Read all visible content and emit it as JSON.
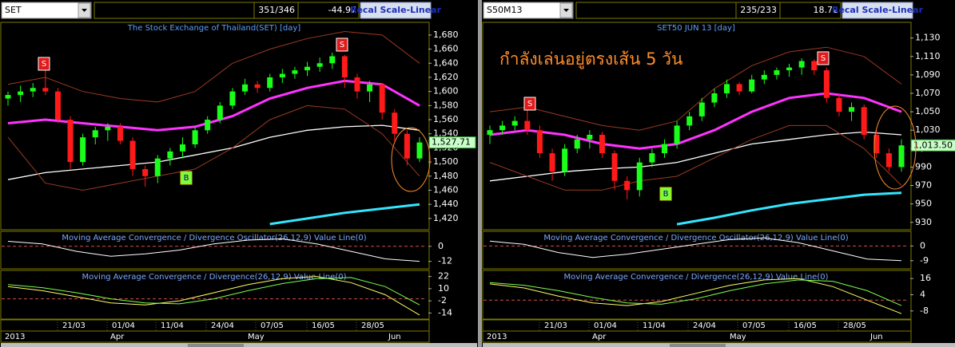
{
  "panels": [
    {
      "symbol": "SET",
      "counts": "351/346",
      "change": "-44.97",
      "button": "Recal Scale-Linear",
      "title": "The Stock Exchange of Thailand(SET) [day]",
      "price": {
        "ylim": [
          1404,
          1698
        ],
        "yticks": [
          {
            "value": 1420,
            "label": "1,420"
          },
          {
            "value": 1440,
            "label": "1,440"
          },
          {
            "value": 1460,
            "label": "1,460"
          },
          {
            "value": 1480,
            "label": "1,480"
          },
          {
            "value": 1500,
            "label": "1,500"
          },
          {
            "value": 1520,
            "label": "1,520"
          },
          {
            "value": 1540,
            "label": "1,540"
          },
          {
            "value": 1560,
            "label": "1,560"
          },
          {
            "value": 1580,
            "label": "1,580"
          },
          {
            "value": 1600,
            "label": "1,600"
          },
          {
            "value": 1620,
            "label": "1,620"
          },
          {
            "value": 1640,
            "label": "1,640"
          },
          {
            "value": 1660,
            "label": "1,660"
          },
          {
            "value": 1680,
            "label": "1,680"
          }
        ],
        "candles": [
          [
            1590,
            1600,
            1580,
            1595
          ],
          [
            1595,
            1608,
            1585,
            1600
          ],
          [
            1600,
            1612,
            1592,
            1605
          ],
          [
            1605,
            1640,
            1595,
            1600
          ],
          [
            1600,
            1605,
            1555,
            1560
          ],
          [
            1560,
            1565,
            1490,
            1500
          ],
          [
            1500,
            1540,
            1495,
            1535
          ],
          [
            1535,
            1550,
            1525,
            1545
          ],
          [
            1545,
            1555,
            1530,
            1550
          ],
          [
            1550,
            1555,
            1525,
            1530
          ],
          [
            1530,
            1535,
            1480,
            1490
          ],
          [
            1490,
            1495,
            1465,
            1480
          ],
          [
            1480,
            1510,
            1470,
            1505
          ],
          [
            1505,
            1520,
            1495,
            1515
          ],
          [
            1515,
            1535,
            1505,
            1525
          ],
          [
            1525,
            1550,
            1520,
            1545
          ],
          [
            1545,
            1565,
            1540,
            1560
          ],
          [
            1560,
            1585,
            1555,
            1580
          ],
          [
            1580,
            1605,
            1575,
            1600
          ],
          [
            1600,
            1618,
            1595,
            1610
          ],
          [
            1610,
            1615,
            1598,
            1605
          ],
          [
            1605,
            1625,
            1600,
            1620
          ],
          [
            1620,
            1632,
            1612,
            1625
          ],
          [
            1625,
            1635,
            1618,
            1630
          ],
          [
            1630,
            1642,
            1622,
            1635
          ],
          [
            1635,
            1648,
            1628,
            1640
          ],
          [
            1640,
            1655,
            1632,
            1650
          ],
          [
            1650,
            1652,
            1605,
            1620
          ],
          [
            1620,
            1625,
            1590,
            1600
          ],
          [
            1600,
            1615,
            1585,
            1610
          ],
          [
            1610,
            1612,
            1560,
            1570
          ],
          [
            1570,
            1575,
            1530,
            1540
          ],
          [
            1540,
            1545,
            1495,
            1505
          ],
          [
            1505,
            1535,
            1500,
            1527.71
          ]
        ],
        "last_label": "1,527.71",
        "lines": [
          {
            "color": "#ff33ff",
            "width": 3,
            "values": [
              1555,
              1560,
              1555,
              1550,
              1545,
              1550,
              1565,
              1590,
              1605,
              1615,
              1610,
              1580
            ]
          },
          {
            "color": "#ffffff",
            "width": 1.3,
            "values": [
              1475,
              1485,
              1490,
              1495,
              1500,
              1510,
              1520,
              1535,
              1545,
              1550,
              1552,
              1545
            ]
          },
          {
            "color": "#33e6ff",
            "width": 3,
            "values": [
              null,
              null,
              null,
              null,
              null,
              null,
              null,
              1412,
              1420,
              1428,
              1434,
              1440
            ]
          },
          {
            "color": "#9a3a22",
            "width": 1,
            "values": [
              1610,
              1620,
              1600,
              1590,
              1585,
              1600,
              1640,
              1660,
              1675,
              1685,
              1680,
              1640
            ]
          },
          {
            "color": "#9a3a22",
            "width": 1,
            "values": [
              1535,
              1470,
              1460,
              1470,
              1480,
              1490,
              1520,
              1560,
              1580,
              1575,
              1540,
              1480
            ]
          }
        ]
      },
      "signals": [
        {
          "label": "S"
        },
        {
          "label": "S"
        },
        {
          "label": "B"
        }
      ],
      "oscillator": {
        "title": "Moving Average Convergence / Divergence Oscillator(26,12,9) Value Line(0)",
        "ylim": [
          -18,
          12
        ],
        "yticks": [
          0,
          -12
        ],
        "color": "#ffffff",
        "values": [
          4,
          2,
          -4,
          -8,
          -6,
          -3,
          2,
          5,
          6,
          2,
          -4,
          -10,
          -12
        ]
      },
      "macd": {
        "title": "Moving Average Convergence / Divergence(26,12,9) Value Line(0)",
        "ylim": [
          -20,
          28
        ],
        "yticks": [
          22,
          10,
          -2,
          -14
        ],
        "series": [
          {
            "color": "#ffff66",
            "values": [
              12,
              8,
              2,
              -4,
              -6,
              -2,
              6,
              14,
              20,
              22,
              16,
              4,
              -16
            ]
          },
          {
            "color": "#7cff4a",
            "values": [
              14,
              11,
              6,
              0,
              -4,
              -5,
              0,
              8,
              15,
              20,
              21,
              12,
              -6
            ]
          }
        ]
      },
      "dates": [
        "21/03",
        "01/04",
        "11/04",
        "24/04",
        "07/05",
        "16/05",
        "28/05"
      ],
      "months": [
        "2013",
        "Apr",
        "May",
        "Jun"
      ]
    },
    {
      "symbol": "S50M13",
      "counts": "235/233",
      "change": "18.72",
      "button": "Recal Scale-Linear",
      "title": "SET50 JUN 13   [day]",
      "annotation": "กำลังเล่นอยู่ตรงเส้น 5 วัน",
      "price": {
        "ylim": [
          922,
          1147
        ],
        "yticks": [
          930,
          950,
          970,
          990,
          {
            "value": 1010,
            "label": "1,010"
          },
          {
            "value": 1030,
            "label": "1,030"
          },
          {
            "value": 1050,
            "label": "1,050"
          },
          {
            "value": 1070,
            "label": "1,070"
          },
          {
            "value": 1090,
            "label": "1,090"
          },
          {
            "value": 1110,
            "label": "1,110"
          },
          {
            "value": 1130,
            "label": "1,130"
          }
        ],
        "candles": [
          [
            1025,
            1035,
            1015,
            1030
          ],
          [
            1030,
            1040,
            1025,
            1035
          ],
          [
            1035,
            1045,
            1030,
            1040
          ],
          [
            1040,
            1055,
            1025,
            1030
          ],
          [
            1030,
            1035,
            1000,
            1005
          ],
          [
            1005,
            1010,
            975,
            985
          ],
          [
            985,
            1015,
            980,
            1010
          ],
          [
            1010,
            1025,
            1005,
            1020
          ],
          [
            1020,
            1030,
            1010,
            1025
          ],
          [
            1025,
            1028,
            1000,
            1005
          ],
          [
            1005,
            1008,
            965,
            975
          ],
          [
            975,
            980,
            955,
            965
          ],
          [
            965,
            1000,
            958,
            995
          ],
          [
            995,
            1010,
            990,
            1005
          ],
          [
            1005,
            1020,
            1000,
            1015
          ],
          [
            1015,
            1040,
            1010,
            1035
          ],
          [
            1035,
            1050,
            1030,
            1045
          ],
          [
            1045,
            1065,
            1040,
            1060
          ],
          [
            1060,
            1075,
            1055,
            1070
          ],
          [
            1070,
            1085,
            1065,
            1080
          ],
          [
            1080,
            1082,
            1068,
            1072
          ],
          [
            1072,
            1090,
            1070,
            1085
          ],
          [
            1085,
            1095,
            1080,
            1090
          ],
          [
            1090,
            1098,
            1085,
            1095
          ],
          [
            1095,
            1102,
            1088,
            1098
          ],
          [
            1098,
            1108,
            1090,
            1105
          ],
          [
            1105,
            1107,
            1090,
            1095
          ],
          [
            1095,
            1098,
            1060,
            1065
          ],
          [
            1065,
            1070,
            1045,
            1050
          ],
          [
            1050,
            1060,
            1040,
            1055
          ],
          [
            1055,
            1058,
            1020,
            1025
          ],
          [
            1025,
            1030,
            1000,
            1005
          ],
          [
            1005,
            1010,
            985,
            990
          ],
          [
            990,
            1020,
            985,
            1013.5
          ]
        ],
        "last_label": "1,013.50",
        "lines": [
          {
            "color": "#ff33ff",
            "width": 3,
            "values": [
              1025,
              1030,
              1025,
              1015,
              1010,
              1015,
              1030,
              1050,
              1065,
              1070,
              1065,
              1050
            ]
          },
          {
            "color": "#ffffff",
            "width": 1.3,
            "values": [
              975,
              980,
              985,
              988,
              990,
              995,
              1005,
              1015,
              1020,
              1025,
              1028,
              1025
            ]
          },
          {
            "color": "#33e6ff",
            "width": 3,
            "values": [
              null,
              null,
              null,
              null,
              null,
              928,
              935,
              943,
              950,
              955,
              960,
              962
            ]
          },
          {
            "color": "#9a3a22",
            "width": 1,
            "values": [
              1050,
              1055,
              1045,
              1035,
              1030,
              1040,
              1075,
              1100,
              1115,
              1120,
              1110,
              1080
            ]
          },
          {
            "color": "#9a3a22",
            "width": 1,
            "values": [
              995,
              980,
              965,
              965,
              975,
              980,
              1000,
              1020,
              1035,
              1035,
              1010,
              970
            ]
          }
        ]
      },
      "signals": [
        {
          "label": "S"
        },
        {
          "label": "S"
        },
        {
          "label": "B"
        }
      ],
      "oscillator": {
        "title": "Moving Average Convergence / Divergence Oscillator(26,12,9) Value Line(0)",
        "ylim": [
          -14,
          9
        ],
        "yticks": [
          0,
          -9
        ],
        "color": "#ffffff",
        "values": [
          3,
          1,
          -4,
          -7,
          -5,
          -2,
          1,
          4,
          5,
          2,
          -3,
          -8,
          -9
        ]
      },
      "macd": {
        "title": "Moving Average Convergence / Divergence(26,12,9) Value Line(0)",
        "ylim": [
          -14,
          22
        ],
        "yticks": [
          16,
          4,
          -8
        ],
        "series": [
          {
            "color": "#ffff66",
            "values": [
              12,
              9,
              3,
              -2,
              -4,
              -1,
              5,
              11,
              15,
              16,
              10,
              0,
              -10
            ]
          },
          {
            "color": "#7cff4a",
            "values": [
              13,
              11,
              7,
              2,
              -2,
              -3,
              1,
              7,
              12,
              15,
              14,
              7,
              -4
            ]
          }
        ]
      },
      "dates": [
        "21/03",
        "01/04",
        "11/04",
        "24/04",
        "07/05",
        "16/05",
        "28/05"
      ],
      "months": [
        "2013",
        "Apr",
        "May",
        "Jun"
      ]
    }
  ]
}
